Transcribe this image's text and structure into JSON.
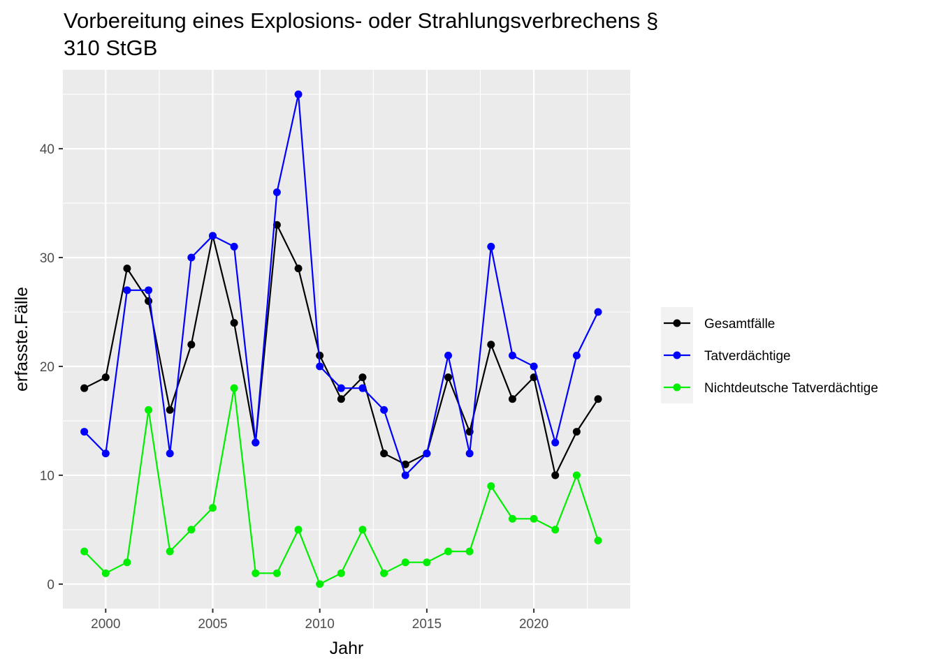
{
  "chart_data": {
    "type": "line",
    "title_lines": [
      "Vorbereitung eines Explosions- oder Strahlungsverbrechens §",
      "310 StGB"
    ],
    "xlabel": "Jahr",
    "ylabel": "erfasste.Fälle",
    "xlim": [
      1998,
      2024.5
    ],
    "ylim": [
      -2.25,
      47.25
    ],
    "x_ticks": [
      2000,
      2005,
      2010,
      2015,
      2020
    ],
    "y_ticks": [
      0,
      10,
      20,
      30,
      40
    ],
    "x_tick_labels": [
      "2000",
      "2005",
      "2010",
      "2015",
      "2020"
    ],
    "y_tick_labels": [
      "0",
      "10",
      "20",
      "30",
      "40"
    ],
    "grid": true,
    "legend_position": "right",
    "x": [
      1999,
      2000,
      2001,
      2002,
      2003,
      2004,
      2005,
      2006,
      2007,
      2008,
      2009,
      2010,
      2011,
      2012,
      2013,
      2014,
      2015,
      2016,
      2017,
      2018,
      2019,
      2020,
      2021,
      2022,
      2023
    ],
    "series": [
      {
        "name": "Gesamtfälle",
        "color": "#000000",
        "values": [
          18,
          19,
          29,
          26,
          16,
          22,
          32,
          24,
          13,
          33,
          29,
          21,
          17,
          19,
          12,
          11,
          12,
          19,
          14,
          22,
          17,
          19,
          10,
          14,
          17
        ]
      },
      {
        "name": "Tatverdächtige",
        "color": "#0000ff",
        "values": [
          14,
          12,
          27,
          27,
          12,
          30,
          32,
          31,
          13,
          36,
          45,
          20,
          18,
          18,
          16,
          10,
          12,
          21,
          12,
          31,
          21,
          20,
          13,
          21,
          25
        ]
      },
      {
        "name": "Nichtdeutsche Tatverdächtige",
        "color": "#00ee00",
        "values": [
          3,
          1,
          2,
          16,
          3,
          5,
          7,
          18,
          1,
          1,
          5,
          0,
          1,
          5,
          1,
          2,
          2,
          3,
          3,
          9,
          6,
          6,
          5,
          10,
          4
        ]
      }
    ]
  }
}
